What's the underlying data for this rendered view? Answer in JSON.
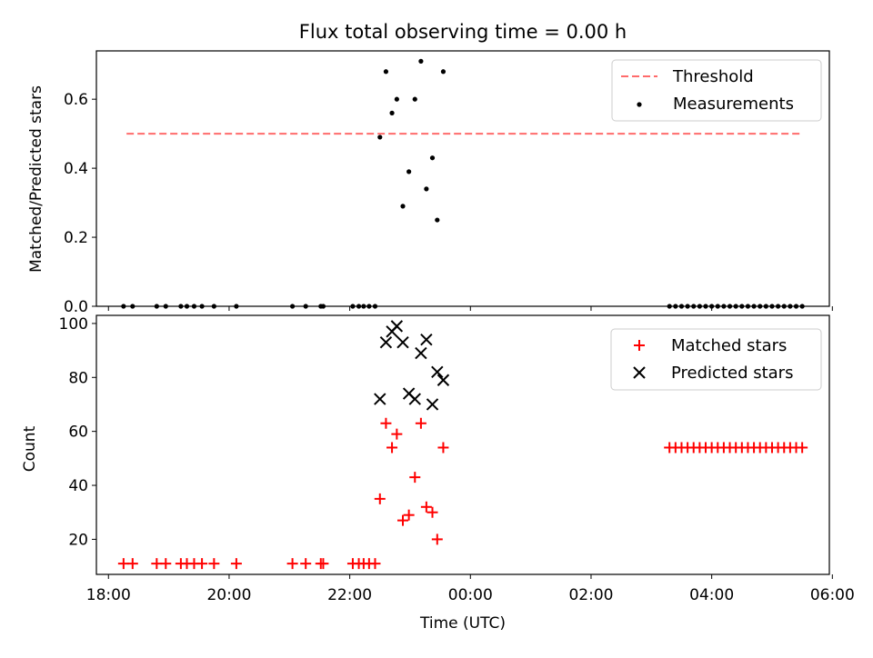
{
  "chart_data": [
    {
      "type": "scatter",
      "title": "Flux total observing time = 0.00 h",
      "ylabel": "Matched/Predicted stars",
      "xlabel": "",
      "x_unit": "hours since 18:00 UTC",
      "xlim": [
        -0.2,
        11.95
      ],
      "ylim": [
        0.0,
        0.74
      ],
      "yticks": [
        0.0,
        0.2,
        0.4,
        0.6
      ],
      "ytick_labels": [
        "0.0",
        "0.2",
        "0.4",
        "0.6"
      ],
      "legend": {
        "position": "top-right",
        "entries": [
          "Threshold",
          "Measurements"
        ]
      },
      "threshold": {
        "name": "Threshold",
        "y": 0.5,
        "x_range": [
          0.3,
          11.5
        ],
        "color": "#ff6b6b",
        "style": "dashed"
      },
      "series": [
        {
          "name": "Measurements",
          "color": "#000000",
          "marker": "dot",
          "points": [
            [
              0.25,
              0.0
            ],
            [
              0.4,
              0.0
            ],
            [
              0.8,
              0.0
            ],
            [
              0.95,
              0.0
            ],
            [
              1.2,
              0.0
            ],
            [
              1.3,
              0.0
            ],
            [
              1.42,
              0.0
            ],
            [
              1.55,
              0.0
            ],
            [
              1.75,
              0.0
            ],
            [
              2.12,
              0.0
            ],
            [
              3.05,
              0.0
            ],
            [
              3.27,
              0.0
            ],
            [
              3.52,
              0.0
            ],
            [
              3.56,
              0.0
            ],
            [
              4.05,
              0.0
            ],
            [
              4.15,
              0.0
            ],
            [
              4.23,
              0.0
            ],
            [
              4.32,
              0.0
            ],
            [
              4.42,
              0.0
            ],
            [
              4.5,
              0.49
            ],
            [
              4.6,
              0.68
            ],
            [
              4.7,
              0.56
            ],
            [
              4.78,
              0.6
            ],
            [
              4.88,
              0.29
            ],
            [
              4.98,
              0.39
            ],
            [
              5.08,
              0.6
            ],
            [
              5.18,
              0.71
            ],
            [
              5.27,
              0.34
            ],
            [
              5.37,
              0.43
            ],
            [
              5.45,
              0.25
            ],
            [
              5.55,
              0.68
            ],
            [
              9.3,
              0.0
            ],
            [
              9.4,
              0.0
            ],
            [
              9.5,
              0.0
            ],
            [
              9.6,
              0.0
            ],
            [
              9.7,
              0.0
            ],
            [
              9.8,
              0.0
            ],
            [
              9.9,
              0.0
            ],
            [
              10.0,
              0.0
            ],
            [
              10.1,
              0.0
            ],
            [
              10.2,
              0.0
            ],
            [
              10.3,
              0.0
            ],
            [
              10.4,
              0.0
            ],
            [
              10.5,
              0.0
            ],
            [
              10.6,
              0.0
            ],
            [
              10.7,
              0.0
            ],
            [
              10.8,
              0.0
            ],
            [
              10.9,
              0.0
            ],
            [
              11.0,
              0.0
            ],
            [
              11.1,
              0.0
            ],
            [
              11.2,
              0.0
            ],
            [
              11.3,
              0.0
            ],
            [
              11.4,
              0.0
            ],
            [
              11.5,
              0.0
            ]
          ]
        }
      ]
    },
    {
      "type": "scatter",
      "title": "",
      "xlabel": "Time (UTC)",
      "ylabel": "Count",
      "x_unit": "hours since 18:00 UTC",
      "xlim": [
        -0.2,
        11.95
      ],
      "ylim": [
        7,
        103
      ],
      "xticks": [
        0,
        2,
        4,
        6,
        8,
        10,
        12
      ],
      "xtick_labels": [
        "18:00",
        "20:00",
        "22:00",
        "00:00",
        "02:00",
        "04:00",
        "06:00"
      ],
      "yticks": [
        20,
        40,
        60,
        80,
        100
      ],
      "ytick_labels": [
        "20",
        "40",
        "60",
        "80",
        "100"
      ],
      "legend": {
        "position": "top-right",
        "entries": [
          "Matched stars",
          "Predicted stars"
        ]
      },
      "series": [
        {
          "name": "Matched stars",
          "color": "#ff0000",
          "marker": "plus",
          "points": [
            [
              0.25,
              11
            ],
            [
              0.4,
              11
            ],
            [
              0.8,
              11
            ],
            [
              0.95,
              11
            ],
            [
              1.2,
              11
            ],
            [
              1.3,
              11
            ],
            [
              1.42,
              11
            ],
            [
              1.55,
              11
            ],
            [
              1.75,
              11
            ],
            [
              2.12,
              11
            ],
            [
              3.05,
              11
            ],
            [
              3.27,
              11
            ],
            [
              3.52,
              11
            ],
            [
              3.56,
              11
            ],
            [
              4.05,
              11
            ],
            [
              4.15,
              11
            ],
            [
              4.23,
              11
            ],
            [
              4.32,
              11
            ],
            [
              4.42,
              11
            ],
            [
              4.5,
              35
            ],
            [
              4.6,
              63
            ],
            [
              4.7,
              54
            ],
            [
              4.78,
              59
            ],
            [
              4.88,
              27
            ],
            [
              4.98,
              29
            ],
            [
              5.08,
              43
            ],
            [
              5.18,
              63
            ],
            [
              5.27,
              32
            ],
            [
              5.37,
              30
            ],
            [
              5.45,
              20
            ],
            [
              5.55,
              54
            ],
            [
              9.3,
              54
            ],
            [
              9.4,
              54
            ],
            [
              9.5,
              54
            ],
            [
              9.6,
              54
            ],
            [
              9.7,
              54
            ],
            [
              9.8,
              54
            ],
            [
              9.9,
              54
            ],
            [
              10.0,
              54
            ],
            [
              10.1,
              54
            ],
            [
              10.2,
              54
            ],
            [
              10.3,
              54
            ],
            [
              10.4,
              54
            ],
            [
              10.5,
              54
            ],
            [
              10.6,
              54
            ],
            [
              10.7,
              54
            ],
            [
              10.8,
              54
            ],
            [
              10.9,
              54
            ],
            [
              11.0,
              54
            ],
            [
              11.1,
              54
            ],
            [
              11.2,
              54
            ],
            [
              11.3,
              54
            ],
            [
              11.4,
              54
            ],
            [
              11.5,
              54
            ]
          ]
        },
        {
          "name": "Predicted stars",
          "color": "#000000",
          "marker": "x",
          "points": [
            [
              4.5,
              72
            ],
            [
              4.6,
              93
            ],
            [
              4.7,
              97
            ],
            [
              4.78,
              99
            ],
            [
              4.88,
              93
            ],
            [
              4.98,
              74
            ],
            [
              5.08,
              72
            ],
            [
              5.18,
              89
            ],
            [
              5.27,
              94
            ],
            [
              5.37,
              70
            ],
            [
              5.45,
              82
            ],
            [
              5.55,
              79
            ]
          ]
        }
      ]
    }
  ]
}
